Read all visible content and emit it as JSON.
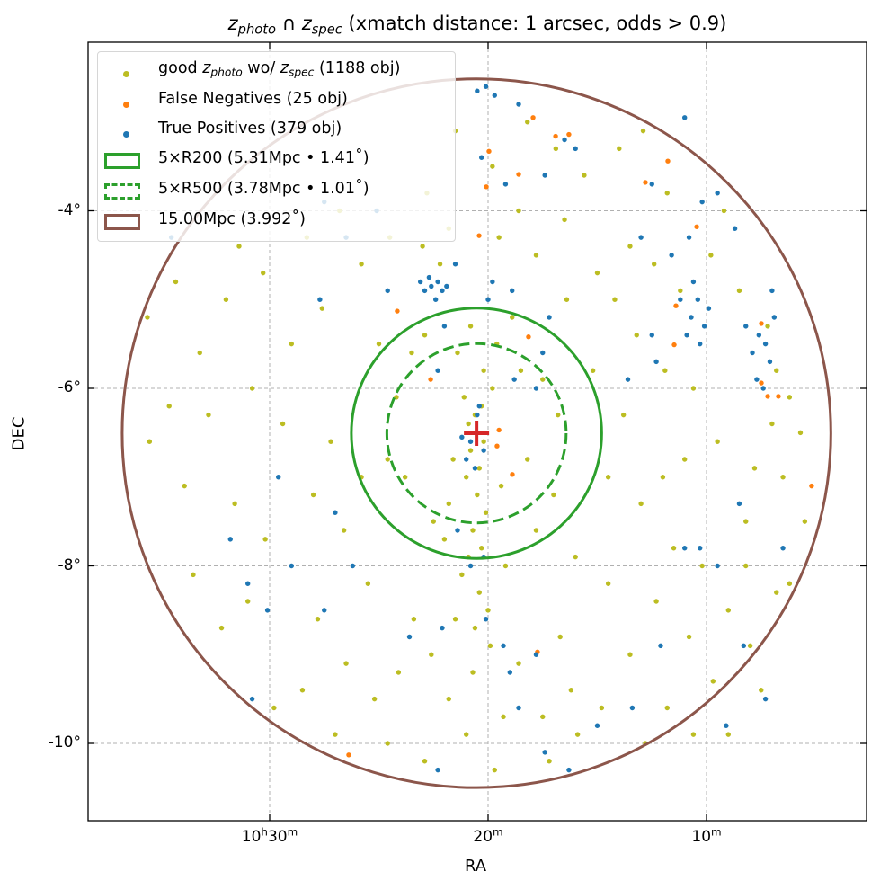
{
  "chart_data": {
    "type": "scatter",
    "title": {
      "z1": "z",
      "sub1": "photo",
      "op": " ∩ ",
      "z2": "z",
      "sub2": "spec",
      "rest": " (xmatch distance: 1 arcsec, odds > 0.9)"
    },
    "xlabel": "RA",
    "ylabel": "DEC",
    "xlim": [
      37.4,
      1.8
    ],
    "ylim": [
      -10.88,
      -2.12
    ],
    "grid": true,
    "x_ticks": [
      {
        "value": 30,
        "h": "10",
        "hu": "h",
        "m": "30",
        "mu": "m"
      },
      {
        "value": 20,
        "h": "",
        "hu": "",
        "m": "20",
        "mu": "m"
      },
      {
        "value": 10,
        "h": "",
        "hu": "",
        "m": "10",
        "mu": "m"
      }
    ],
    "y_ticks": [
      {
        "value": -4,
        "label": "-4°"
      },
      {
        "value": -6,
        "label": "-6°"
      },
      {
        "value": -8,
        "label": "-8°"
      },
      {
        "value": -10,
        "label": "-10°"
      }
    ],
    "center": {
      "ra": 20.53,
      "dec": -6.506,
      "marker": "plus",
      "color": "#d62728"
    },
    "circles": [
      {
        "name": "5×R200",
        "radius_deg": 1.41,
        "style": "solid",
        "color": "#2ca02c"
      },
      {
        "name": "5×R500",
        "radius_deg": 1.01,
        "style": "dashed",
        "color": "#2ca02c"
      },
      {
        "name": "15.00Mpc",
        "radius_deg": 3.992,
        "style": "solid",
        "color": "#8c564b"
      }
    ],
    "legend": {
      "placement": "top-left",
      "good": {
        "pre": "good ",
        "z1": "z",
        "s1": "photo",
        "mid": " wo/ ",
        "z2": "z",
        "s2": "spec",
        "post": " (1188 obj)",
        "color": "#bcbd22"
      },
      "fn": {
        "label": "False Negatives (25 obj)",
        "color": "#ff7f0e"
      },
      "tp": {
        "label": "True Positives (379 obj)",
        "color": "#1f77b4"
      },
      "r200": {
        "text": "5×R200 (5.31Mpc • 1.41˚)"
      },
      "r500": {
        "text": "5×R500 (3.78Mpc • 1.01˚)"
      },
      "r15": {
        "text": "15.00Mpc (3.992˚)"
      }
    },
    "series": [
      {
        "name": "good z_photo wo/ z_spec",
        "count": 1188,
        "color": "#bcbd22",
        "points": [
          [
            20.3,
            -6.2
          ],
          [
            20.6,
            -6.3
          ],
          [
            20.9,
            -6.4
          ],
          [
            20.2,
            -6.6
          ],
          [
            20.8,
            -6.7
          ],
          [
            20.4,
            -6.9
          ],
          [
            21.0,
            -7.0
          ],
          [
            20.5,
            -7.2
          ],
          [
            20.1,
            -7.4
          ],
          [
            20.7,
            -7.6
          ],
          [
            20.3,
            -7.8
          ],
          [
            20.9,
            -7.9
          ],
          [
            21.2,
            -8.1
          ],
          [
            20.4,
            -8.3
          ],
          [
            20.0,
            -8.5
          ],
          [
            20.6,
            -8.7
          ],
          [
            21.1,
            -6.1
          ],
          [
            19.8,
            -6.0
          ],
          [
            20.2,
            -5.8
          ],
          [
            21.4,
            -5.6
          ],
          [
            19.6,
            -5.5
          ],
          [
            20.8,
            -5.3
          ],
          [
            21.6,
            -6.8
          ],
          [
            19.4,
            -7.1
          ],
          [
            21.8,
            -7.3
          ],
          [
            19.9,
            -8.9
          ],
          [
            20.7,
            -9.2
          ],
          [
            21.5,
            -8.6
          ],
          [
            19.2,
            -8.0
          ],
          [
            22.0,
            -7.7
          ],
          [
            23.5,
            -5.6
          ],
          [
            24.2,
            -6.1
          ],
          [
            22.9,
            -5.4
          ],
          [
            18.5,
            -5.8
          ],
          [
            17.5,
            -5.9
          ],
          [
            18.2,
            -6.8
          ],
          [
            17.0,
            -7.2
          ],
          [
            23.8,
            -7.0
          ],
          [
            24.6,
            -6.8
          ],
          [
            22.5,
            -7.5
          ],
          [
            17.8,
            -7.6
          ],
          [
            16.8,
            -6.3
          ],
          [
            25.0,
            -5.5
          ],
          [
            18.9,
            -5.2
          ],
          [
            22.2,
            -4.6
          ],
          [
            23.0,
            -4.4
          ],
          [
            21.8,
            -4.2
          ],
          [
            19.5,
            -4.3
          ],
          [
            18.6,
            -4.0
          ],
          [
            17.8,
            -4.5
          ],
          [
            16.5,
            -4.1
          ],
          [
            15.0,
            -4.7
          ],
          [
            14.2,
            -5.0
          ],
          [
            13.5,
            -4.4
          ],
          [
            16.9,
            -3.3
          ],
          [
            18.2,
            -3.0
          ],
          [
            19.8,
            -3.5
          ],
          [
            21.5,
            -3.1
          ],
          [
            22.8,
            -3.8
          ],
          [
            24.5,
            -4.3
          ],
          [
            25.8,
            -4.6
          ],
          [
            15.6,
            -3.6
          ],
          [
            14.0,
            -3.3
          ],
          [
            12.9,
            -3.1
          ],
          [
            11.8,
            -3.8
          ],
          [
            12.4,
            -4.6
          ],
          [
            13.2,
            -5.4
          ],
          [
            11.2,
            -4.9
          ],
          [
            9.8,
            -4.5
          ],
          [
            9.2,
            -4.0
          ],
          [
            8.5,
            -4.9
          ],
          [
            7.2,
            -5.3
          ],
          [
            6.8,
            -5.8
          ],
          [
            6.2,
            -6.1
          ],
          [
            7.0,
            -6.4
          ],
          [
            7.8,
            -6.9
          ],
          [
            6.5,
            -7.0
          ],
          [
            5.7,
            -6.5
          ],
          [
            8.2,
            -7.5
          ],
          [
            9.5,
            -6.6
          ],
          [
            10.6,
            -6.0
          ],
          [
            11.9,
            -5.8
          ],
          [
            13.8,
            -6.3
          ],
          [
            14.5,
            -7.0
          ],
          [
            13.0,
            -7.3
          ],
          [
            11.5,
            -7.8
          ],
          [
            10.2,
            -8.0
          ],
          [
            9.0,
            -8.5
          ],
          [
            8.0,
            -8.9
          ],
          [
            6.8,
            -8.3
          ],
          [
            7.5,
            -9.4
          ],
          [
            9.7,
            -9.3
          ],
          [
            10.8,
            -8.8
          ],
          [
            12.3,
            -8.4
          ],
          [
            13.5,
            -9.0
          ],
          [
            11.8,
            -9.6
          ],
          [
            9.0,
            -9.9
          ],
          [
            14.8,
            -9.6
          ],
          [
            16.2,
            -9.4
          ],
          [
            17.5,
            -9.7
          ],
          [
            16.7,
            -8.8
          ],
          [
            15.9,
            -9.9
          ],
          [
            17.2,
            -10.2
          ],
          [
            18.6,
            -9.1
          ],
          [
            19.3,
            -9.7
          ],
          [
            21.8,
            -9.5
          ],
          [
            22.6,
            -9.0
          ],
          [
            23.4,
            -8.6
          ],
          [
            24.1,
            -9.2
          ],
          [
            25.2,
            -9.5
          ],
          [
            26.5,
            -9.1
          ],
          [
            27.8,
            -8.6
          ],
          [
            28.5,
            -9.4
          ],
          [
            29.8,
            -9.6
          ],
          [
            31.0,
            -8.4
          ],
          [
            32.2,
            -8.7
          ],
          [
            33.5,
            -8.1
          ],
          [
            30.2,
            -7.7
          ],
          [
            28.0,
            -7.2
          ],
          [
            26.6,
            -7.6
          ],
          [
            25.5,
            -8.2
          ],
          [
            27.2,
            -6.6
          ],
          [
            29.4,
            -6.4
          ],
          [
            30.8,
            -6.0
          ],
          [
            32.8,
            -6.3
          ],
          [
            34.6,
            -6.2
          ],
          [
            35.5,
            -6.6
          ],
          [
            33.9,
            -7.1
          ],
          [
            31.6,
            -7.3
          ],
          [
            29.0,
            -5.5
          ],
          [
            27.6,
            -5.1
          ],
          [
            30.3,
            -4.7
          ],
          [
            32.0,
            -5.0
          ],
          [
            33.2,
            -5.6
          ],
          [
            34.3,
            -4.8
          ],
          [
            35.6,
            -5.2
          ],
          [
            28.3,
            -4.3
          ],
          [
            26.8,
            -4.0
          ],
          [
            31.4,
            -4.4
          ],
          [
            24.6,
            -10.0
          ],
          [
            22.9,
            -10.2
          ],
          [
            19.7,
            -10.3
          ],
          [
            21.0,
            -9.9
          ],
          [
            12.8,
            -10.0
          ],
          [
            10.6,
            -9.9
          ],
          [
            8.2,
            -8.0
          ],
          [
            6.2,
            -8.2
          ],
          [
            5.5,
            -7.5
          ],
          [
            25.8,
            -7.0
          ],
          [
            27.0,
            -9.9
          ],
          [
            14.5,
            -8.2
          ],
          [
            16.0,
            -7.9
          ],
          [
            15.2,
            -5.8
          ],
          [
            16.4,
            -5.0
          ],
          [
            11.0,
            -6.8
          ],
          [
            12.0,
            -7.0
          ]
        ]
      },
      {
        "name": "False Negatives",
        "count": 25,
        "color": "#ff7f0e",
        "points": [
          [
            17.94,
            -2.95
          ],
          [
            16.91,
            -3.16
          ],
          [
            16.3,
            -3.14
          ],
          [
            19.96,
            -3.33
          ],
          [
            18.6,
            -3.59
          ],
          [
            20.08,
            -3.73
          ],
          [
            11.77,
            -3.44
          ],
          [
            12.8,
            -3.68
          ],
          [
            10.45,
            -4.18
          ],
          [
            20.41,
            -4.28
          ],
          [
            24.16,
            -5.13
          ],
          [
            18.15,
            -5.42
          ],
          [
            11.4,
            -5.07
          ],
          [
            11.48,
            -5.51
          ],
          [
            7.49,
            -5.27
          ],
          [
            7.49,
            -5.94
          ],
          [
            7.2,
            -6.09
          ],
          [
            6.71,
            -6.09
          ],
          [
            5.19,
            -7.1
          ],
          [
            22.63,
            -5.9
          ],
          [
            19.59,
            -6.65
          ],
          [
            19.5,
            -6.47
          ],
          [
            18.89,
            -6.97
          ],
          [
            17.74,
            -8.97
          ],
          [
            26.38,
            -10.13
          ]
        ]
      },
      {
        "name": "True Positives",
        "count": 379,
        "color": "#1f77b4",
        "points": [
          [
            22.3,
            -4.8
          ],
          [
            22.6,
            -4.85
          ],
          [
            22.9,
            -4.9
          ],
          [
            22.1,
            -4.9
          ],
          [
            22.7,
            -4.75
          ],
          [
            23.1,
            -4.8
          ],
          [
            21.9,
            -4.85
          ],
          [
            22.4,
            -5.0
          ],
          [
            10.4,
            -5.0
          ],
          [
            10.7,
            -5.2
          ],
          [
            10.1,
            -5.3
          ],
          [
            10.9,
            -5.4
          ],
          [
            10.3,
            -5.5
          ],
          [
            9.9,
            -5.1
          ],
          [
            11.2,
            -5.0
          ],
          [
            10.6,
            -4.8
          ],
          [
            7.6,
            -5.4
          ],
          [
            7.9,
            -5.6
          ],
          [
            7.3,
            -5.5
          ],
          [
            7.1,
            -5.7
          ],
          [
            7.7,
            -5.9
          ],
          [
            8.2,
            -5.3
          ],
          [
            6.9,
            -5.2
          ],
          [
            7.4,
            -6.0
          ],
          [
            7.0,
            -4.9
          ],
          [
            20.5,
            -6.3
          ],
          [
            20.8,
            -6.6
          ],
          [
            20.2,
            -6.7
          ],
          [
            20.6,
            -6.9
          ],
          [
            21.0,
            -6.8
          ],
          [
            20.4,
            -6.2
          ],
          [
            21.2,
            -6.55
          ],
          [
            20.1,
            -2.6
          ],
          [
            19.7,
            -2.7
          ],
          [
            20.5,
            -2.65
          ],
          [
            18.6,
            -2.8
          ],
          [
            17.4,
            -3.6
          ],
          [
            16.5,
            -3.2
          ],
          [
            16.0,
            -3.3
          ],
          [
            20.3,
            -3.4
          ],
          [
            19.2,
            -3.7
          ],
          [
            21.5,
            -4.6
          ],
          [
            19.8,
            -4.8
          ],
          [
            18.9,
            -4.9
          ],
          [
            20.0,
            -5.0
          ],
          [
            17.2,
            -5.2
          ],
          [
            17.5,
            -5.6
          ],
          [
            12.5,
            -3.7
          ],
          [
            11.0,
            -2.95
          ],
          [
            10.2,
            -3.9
          ],
          [
            9.5,
            -3.8
          ],
          [
            13.0,
            -4.3
          ],
          [
            8.7,
            -4.2
          ],
          [
            10.8,
            -4.3
          ],
          [
            11.6,
            -4.5
          ],
          [
            12.3,
            -5.7
          ],
          [
            13.6,
            -5.9
          ],
          [
            12.5,
            -5.4
          ],
          [
            27.7,
            -5.0
          ],
          [
            25.1,
            -4.0
          ],
          [
            26.5,
            -4.3
          ],
          [
            27.5,
            -3.9
          ],
          [
            24.6,
            -4.9
          ],
          [
            22.0,
            -5.3
          ],
          [
            22.3,
            -5.8
          ],
          [
            18.8,
            -5.9
          ],
          [
            17.8,
            -6.0
          ],
          [
            34.5,
            -4.3
          ],
          [
            20.2,
            -7.9
          ],
          [
            20.8,
            -8.0
          ],
          [
            21.4,
            -7.6
          ],
          [
            20.1,
            -8.6
          ],
          [
            19.3,
            -8.9
          ],
          [
            22.1,
            -8.7
          ],
          [
            26.2,
            -8.0
          ],
          [
            27.5,
            -8.5
          ],
          [
            30.1,
            -8.5
          ],
          [
            31.0,
            -8.2
          ],
          [
            29.6,
            -7.0
          ],
          [
            22.3,
            -10.3
          ],
          [
            18.6,
            -9.6
          ],
          [
            17.8,
            -9.0
          ],
          [
            17.4,
            -10.1
          ],
          [
            16.3,
            -10.3
          ],
          [
            10.3,
            -7.8
          ],
          [
            11.0,
            -7.8
          ],
          [
            9.5,
            -8.0
          ],
          [
            8.5,
            -7.3
          ],
          [
            6.5,
            -7.8
          ],
          [
            8.3,
            -8.9
          ],
          [
            7.3,
            -9.5
          ],
          [
            9.1,
            -9.8
          ],
          [
            15.0,
            -9.8
          ],
          [
            12.1,
            -8.9
          ],
          [
            13.4,
            -9.6
          ],
          [
            23.6,
            -8.8
          ],
          [
            27.0,
            -7.4
          ],
          [
            29.0,
            -8.0
          ],
          [
            31.8,
            -7.7
          ],
          [
            30.8,
            -9.5
          ],
          [
            19.0,
            -9.2
          ]
        ]
      }
    ]
  }
}
